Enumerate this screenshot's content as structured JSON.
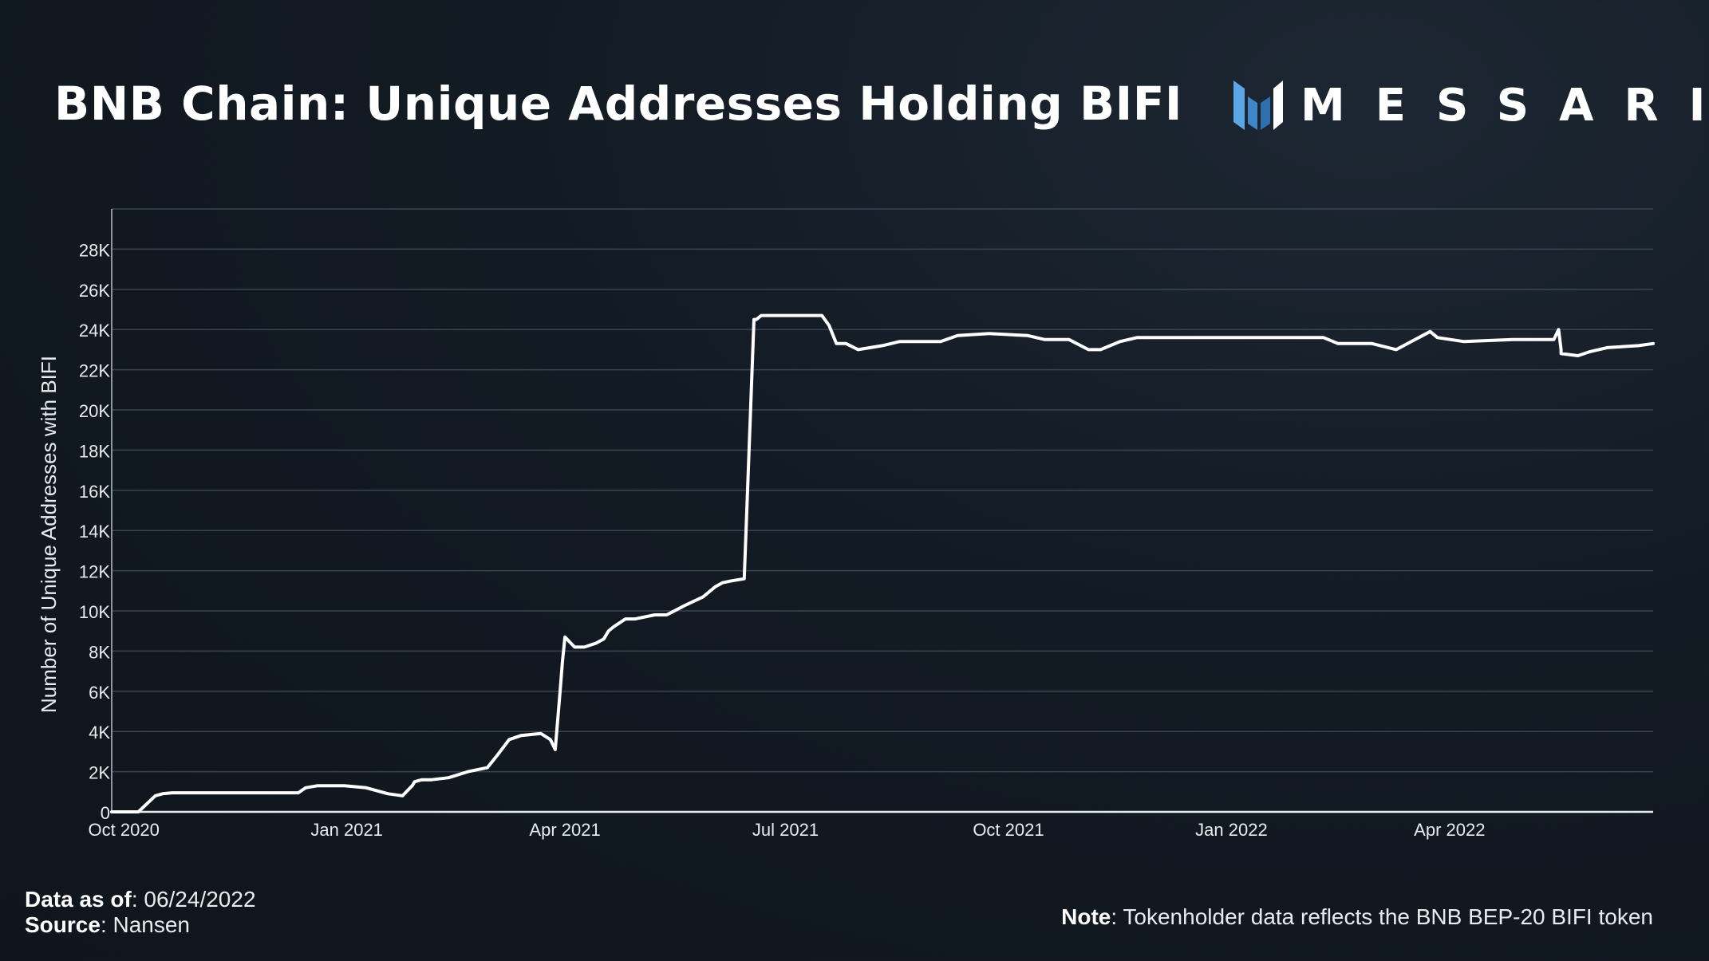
{
  "title": "BNB Chain: Unique Addresses Holding BIFI",
  "logo": {
    "text": "MESSARI",
    "icon": "messari-logo-icon",
    "accent": "#4a90d9"
  },
  "footer": {
    "data_as_of_label": "Data as of",
    "data_as_of_value": ": 06/24/2022",
    "source_label": "Source",
    "source_value": ": Nansen",
    "note_label": "Note",
    "note_value": ": Tokenholder data reflects the BNB BEP-20 BIFI token"
  },
  "chart_data": {
    "type": "line",
    "title": "BNB Chain: Unique Addresses Holding BIFI",
    "xlabel": "",
    "ylabel": "Number of Unique Addresses with BIFI",
    "ylim": [
      0,
      30000
    ],
    "yticks": [
      0,
      2000,
      4000,
      6000,
      8000,
      10000,
      12000,
      14000,
      16000,
      18000,
      20000,
      22000,
      24000,
      26000,
      28000
    ],
    "ytick_labels": [
      "0",
      "2K",
      "4K",
      "6K",
      "8K",
      "10K",
      "12K",
      "14K",
      "16K",
      "18K",
      "20K",
      "22K",
      "24K",
      "26K",
      "28K"
    ],
    "xlim": [
      "2020-09-26",
      "2022-06-24"
    ],
    "xticks": [
      "2020-10-01",
      "2021-01-01",
      "2021-04-01",
      "2021-07-01",
      "2021-10-01",
      "2022-01-01",
      "2022-04-01"
    ],
    "xtick_labels": [
      "Oct 2020",
      "Jan 2021",
      "Apr 2021",
      "Jul 2021",
      "Oct 2021",
      "Jan 2022",
      "Apr 2022"
    ],
    "grid": true,
    "line_color": "#ffffff",
    "series": [
      {
        "x": [
          "2020-09-26",
          "2020-10-07",
          "2020-10-14",
          "2020-10-17",
          "2020-10-21",
          "2020-10-26",
          "2020-11-15",
          "2020-12-12",
          "2020-12-15",
          "2020-12-20",
          "2020-12-31",
          "2021-01-09",
          "2021-01-18",
          "2021-01-24",
          "2021-01-28",
          "2021-01-29",
          "2021-02-01",
          "2021-02-05",
          "2021-02-12",
          "2021-02-20",
          "2021-02-28",
          "2021-03-04",
          "2021-03-09",
          "2021-03-14",
          "2021-03-22",
          "2021-03-26",
          "2021-03-28",
          "2021-03-30",
          "2021-03-31",
          "2021-04-01",
          "2021-04-05",
          "2021-04-09",
          "2021-04-14",
          "2021-04-17",
          "2021-04-19",
          "2021-04-21",
          "2021-04-26",
          "2021-04-30",
          "2021-05-08",
          "2021-05-13",
          "2021-05-21",
          "2021-05-28",
          "2021-06-02",
          "2021-06-05",
          "2021-06-09",
          "2021-06-14",
          "2021-06-18",
          "2021-06-19",
          "2021-06-20",
          "2021-06-21",
          "2021-06-22",
          "2021-06-27",
          "2021-07-11",
          "2021-07-16",
          "2021-07-19",
          "2021-07-22",
          "2021-07-26",
          "2021-07-31",
          "2021-08-10",
          "2021-08-17",
          "2021-09-03",
          "2021-09-10",
          "2021-09-23",
          "2021-10-09",
          "2021-10-16",
          "2021-10-26",
          "2021-11-03",
          "2021-11-08",
          "2021-11-16",
          "2021-11-23",
          "2021-12-02",
          "2021-12-15",
          "2022-01-09",
          "2022-02-08",
          "2022-02-14",
          "2022-02-28",
          "2022-03-10",
          "2022-03-24",
          "2022-03-27",
          "2022-04-07",
          "2022-04-27",
          "2022-05-14",
          "2022-05-16",
          "2022-05-17",
          "2022-05-17",
          "2022-05-24",
          "2022-05-29",
          "2022-06-05",
          "2022-06-18",
          "2022-06-24"
        ],
        "values": [
          0,
          0,
          800,
          900,
          950,
          950,
          950,
          950,
          1200,
          1300,
          1300,
          1200,
          900,
          800,
          1300,
          1500,
          1600,
          1600,
          1700,
          2000,
          2200,
          2800,
          3600,
          3800,
          3900,
          3600,
          3100,
          6000,
          7500,
          8700,
          8200,
          8200,
          8400,
          8600,
          9000,
          9200,
          9600,
          9600,
          9800,
          9800,
          10300,
          10700,
          11200,
          11400,
          11500,
          11600,
          24500,
          24500,
          24600,
          24700,
          24700,
          24700,
          24700,
          24700,
          24200,
          23300,
          23300,
          23000,
          23200,
          23400,
          23400,
          23700,
          23800,
          23700,
          23500,
          23500,
          23000,
          23000,
          23400,
          23600,
          23600,
          23600,
          23600,
          23600,
          23300,
          23300,
          23000,
          23900,
          23600,
          23400,
          23500,
          23500,
          24000,
          23000,
          22800,
          22700,
          22900,
          23100,
          23200,
          23300
        ]
      }
    ]
  }
}
